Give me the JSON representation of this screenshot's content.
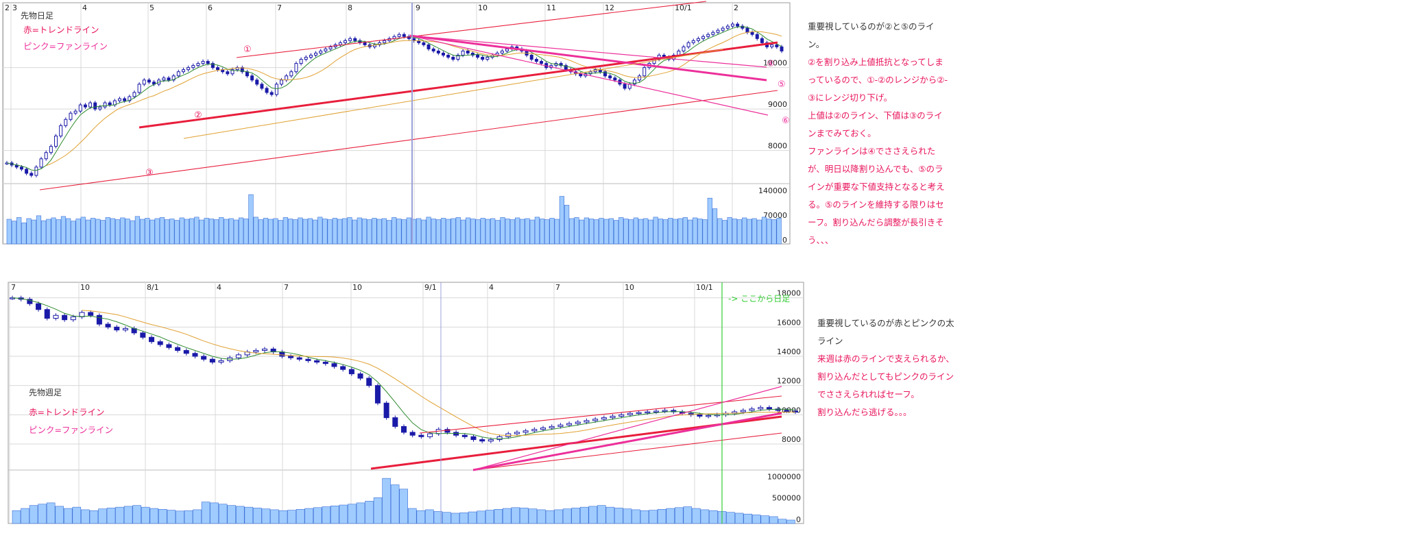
{
  "colors": {
    "candle": "#1a1aa8",
    "volume_fill": "#9fcbff",
    "volume_edge": "#3b6fd6",
    "trend_red": "#e81e3c",
    "fan_pink": "#ec2f9a",
    "ma_green": "#2e8b2e",
    "ma_orange": "#e0a030",
    "grid": "#d8d8d8",
    "annot_red": "#e8145a",
    "text_dark": "#333333",
    "green_marker": "#33cc33"
  },
  "top_panel": {
    "title": "先物日足",
    "legend_red": "赤=トレンドライン",
    "legend_pink": "ピンク=ファンライン",
    "date_ticks": [
      "2",
      "3",
      "4",
      "5",
      "6",
      "7",
      "8",
      "9",
      "10",
      "11",
      "12",
      "10/1",
      "2"
    ],
    "price_ticks": [
      "10000",
      "9000",
      "8000"
    ],
    "volume_ticks": [
      "140000",
      "70000",
      "0"
    ],
    "line_labels": [
      "①",
      "②",
      "③",
      "④",
      "⑤",
      "⑥"
    ]
  },
  "bottom_panel": {
    "title": "先物週足",
    "legend_red": "赤=トレンドライン",
    "legend_pink": "ピンク=ファンライン",
    "date_ticks": [
      "7",
      "10",
      "8/1",
      "4",
      "7",
      "10",
      "9/1",
      "4",
      "7",
      "10",
      "10/1"
    ],
    "price_ticks": [
      "18000",
      "16000",
      "14000",
      "12000",
      "10000",
      "8000"
    ],
    "volume_ticks": [
      "1000000",
      "500000",
      "0"
    ],
    "marker_label": "-> ここから日足"
  },
  "commentary_top": [
    {
      "text": "重要視しているのが②と⑤のライン。",
      "color": "dark"
    },
    {
      "text": "②を割り込み上値抵抗となってしまっているので、①-②のレンジから②-③にレンジ切り下げ。",
      "color": "red"
    },
    {
      "text": "上値は②のライン、下値は③のラインまでみておく。",
      "color": "red"
    },
    {
      "text": "ファンラインは④でささえられたが、明日以降割り込んでも、⑤のラインが重要な下値支持となると考える。⑤のラインを維持する限りはセーフ。割り込んだら調整が長引きそう、、、",
      "color": "red"
    }
  ],
  "commentary_bottom": [
    {
      "text": "重要視しているのが赤とピンクの太ライン",
      "color": "dark"
    },
    {
      "text": "来週は赤のラインで支えられるか、割り込んだとしてもピンクのラインでささえられればセーフ。",
      "color": "red"
    },
    {
      "text": "割り込んだら逃げる。。。",
      "color": "red"
    }
  ],
  "chart_data": [
    {
      "type": "candlestick",
      "title": "先物日足",
      "y_ticks": [
        8000,
        9000,
        10000
      ],
      "ylim": [
        7300,
        11300
      ],
      "volume_ylim": [
        0,
        140000
      ],
      "volume_ticks": [
        0,
        70000,
        140000
      ],
      "x_tick_labels": [
        "2",
        "3",
        "4",
        "5",
        "6",
        "7",
        "8",
        "9",
        "10",
        "11",
        "12",
        "10/1",
        "2"
      ],
      "close_series": [
        7700,
        7650,
        7600,
        7550,
        7450,
        7400,
        7600,
        7800,
        7950,
        8100,
        8350,
        8600,
        8750,
        8900,
        8950,
        9100,
        9050,
        9150,
        9000,
        9050,
        9150,
        9100,
        9200,
        9250,
        9200,
        9300,
        9400,
        9600,
        9700,
        9650,
        9600,
        9700,
        9750,
        9700,
        9800,
        9900,
        9950,
        10000,
        10050,
        10100,
        10150,
        10100,
        10000,
        9950,
        9900,
        9850,
        9950,
        10000,
        9900,
        9800,
        9700,
        9600,
        9500,
        9400,
        9350,
        9600,
        9700,
        9800,
        9900,
        10100,
        10200,
        10250,
        10300,
        10350,
        10400,
        10450,
        10500,
        10550,
        10600,
        10650,
        10700,
        10650,
        10600,
        10550,
        10500,
        10550,
        10600,
        10650,
        10700,
        10750,
        10800,
        10750,
        10700,
        10650,
        10600,
        10550,
        10450,
        10400,
        10350,
        10300,
        10250,
        10200,
        10300,
        10400,
        10350,
        10300,
        10250,
        10200,
        10250,
        10300,
        10350,
        10400,
        10450,
        10500,
        10450,
        10400,
        10300,
        10200,
        10150,
        10100,
        10000,
        10050,
        10100,
        10050,
        9950,
        9900,
        9850,
        9800,
        9850,
        9900,
        9950,
        9900,
        9800,
        9750,
        9700,
        9600,
        9500,
        9600,
        9700,
        9800,
        10000,
        10100,
        10200,
        10300,
        10250,
        10200,
        10300,
        10400,
        10500,
        10600,
        10650,
        10700,
        10750,
        10800,
        10850,
        10900,
        10950,
        11000,
        11050,
        11000,
        10950,
        10850,
        10800,
        10700,
        10600,
        10500,
        10550,
        10500,
        10400
      ],
      "volume_series": [
        70000,
        65000,
        75000,
        60000,
        72000,
        68000,
        80000,
        66000,
        70000,
        74000,
        69000,
        78000,
        72000,
        65000,
        71000,
        76000,
        68000,
        73000,
        70000,
        67000,
        75000,
        72000,
        69000,
        74000,
        71000,
        66000,
        78000,
        70000,
        73000,
        68000,
        72000,
        75000,
        69000,
        71000,
        67000,
        74000,
        70000,
        72000,
        76000,
        68000,
        73000,
        71000,
        69000,
        75000,
        70000,
        72000,
        68000,
        74000,
        71000,
        140000,
        76000,
        69000,
        73000,
        70000,
        72000,
        67000,
        75000,
        71000,
        69000,
        74000,
        70000,
        72000,
        68000,
        76000,
        71000,
        69000,
        73000,
        70000,
        72000,
        75000,
        68000,
        74000,
        71000,
        69000,
        73000,
        70000,
        72000,
        67000,
        75000,
        71000,
        69000,
        74000,
        70000,
        72000,
        68000,
        76000,
        71000,
        69000,
        73000,
        70000,
        72000,
        75000,
        68000,
        74000,
        71000,
        69000,
        73000,
        70000,
        72000,
        67000,
        75000,
        71000,
        69000,
        74000,
        70000,
        72000,
        68000,
        76000,
        71000,
        69000,
        73000,
        70000,
        135000,
        110000,
        72000,
        75000,
        68000,
        74000,
        71000,
        69000,
        73000,
        70000,
        72000,
        67000,
        75000,
        71000,
        69000,
        74000,
        70000,
        72000,
        68000,
        76000,
        71000,
        69000,
        73000,
        70000,
        72000,
        75000,
        68000,
        74000,
        71000,
        69000,
        130000,
        100000,
        72000,
        67000,
        75000,
        71000,
        69000,
        74000,
        70000,
        72000,
        68000,
        76000,
        71000,
        69000,
        73000
      ]
    },
    {
      "type": "candlestick",
      "title": "先物週足",
      "y_ticks": [
        8000,
        10000,
        12000,
        14000,
        16000,
        18000
      ],
      "ylim": [
        6500,
        18500
      ],
      "volume_ylim": [
        0,
        1100000
      ],
      "volume_ticks": [
        0,
        500000,
        1000000
      ],
      "x_tick_labels": [
        "7",
        "10",
        "8/1",
        "4",
        "7",
        "10",
        "9/1",
        "4",
        "7",
        "10",
        "10/1"
      ],
      "close_series": [
        18000,
        17900,
        17600,
        17200,
        16600,
        16800,
        16500,
        16700,
        17000,
        16800,
        16200,
        16000,
        15800,
        15900,
        15600,
        15300,
        15000,
        14800,
        14600,
        14400,
        14200,
        14000,
        13800,
        13600,
        13700,
        13900,
        14100,
        14300,
        14400,
        14500,
        14300,
        14000,
        13900,
        13800,
        13700,
        13600,
        13500,
        13300,
        13100,
        12800,
        12500,
        12000,
        10800,
        9800,
        9200,
        8800,
        8600,
        8500,
        8700,
        9000,
        8800,
        8600,
        8500,
        8300,
        8200,
        8300,
        8500,
        8700,
        8800,
        8900,
        9000,
        9100,
        9200,
        9300,
        9400,
        9500,
        9600,
        9700,
        9800,
        9900,
        10000,
        10100,
        10150,
        10200,
        10250,
        10300,
        10200,
        10100,
        10000,
        9900,
        9950,
        10000,
        10100,
        10200,
        10300,
        10400,
        10500,
        10400,
        10300,
        10250,
        10200
      ],
      "volume_series": [
        300000,
        350000,
        420000,
        450000,
        480000,
        400000,
        350000,
        380000,
        320000,
        300000,
        340000,
        360000,
        380000,
        400000,
        420000,
        380000,
        350000,
        330000,
        310000,
        290000,
        300000,
        320000,
        500000,
        480000,
        450000,
        420000,
        400000,
        380000,
        360000,
        340000,
        320000,
        300000,
        310000,
        330000,
        350000,
        370000,
        390000,
        410000,
        430000,
        450000,
        480000,
        520000,
        600000,
        1050000,
        900000,
        800000,
        350000,
        300000,
        320000,
        280000,
        260000,
        240000,
        250000,
        270000,
        290000,
        310000,
        330000,
        350000,
        370000,
        360000,
        340000,
        320000,
        300000,
        320000,
        340000,
        360000,
        380000,
        400000,
        420000,
        380000,
        360000,
        340000,
        320000,
        300000,
        310000,
        330000,
        350000,
        370000,
        390000,
        350000,
        320000,
        300000,
        280000,
        260000,
        240000,
        220000,
        200000,
        180000,
        160000,
        100000,
        80000
      ]
    }
  ]
}
